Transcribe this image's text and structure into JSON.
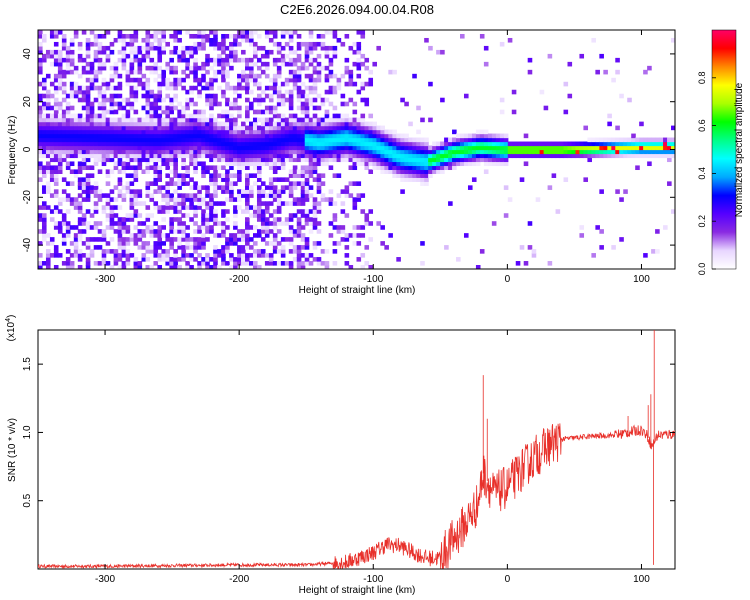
{
  "title": "C2E6.2026.094.00.04.R08",
  "chart_data": [
    {
      "type": "heatmap",
      "name": "spectrogram",
      "xlabel": "Height of straight line (km)",
      "ylabel": "Frequency (Hz)",
      "xlim": [
        -350,
        125
      ],
      "ylim": [
        -50,
        50
      ],
      "xticks": [
        -300,
        -200,
        -100,
        0,
        100
      ],
      "yticks": [
        -40,
        -20,
        0,
        20,
        40
      ],
      "ridge_center": [
        [
          -350,
          6
        ],
        [
          -300,
          5
        ],
        [
          -260,
          4
        ],
        [
          -230,
          6
        ],
        [
          -200,
          1
        ],
        [
          -180,
          2
        ],
        [
          -160,
          5
        ],
        [
          -140,
          3
        ],
        [
          -120,
          5
        ],
        [
          -100,
          2
        ],
        [
          -80,
          -3
        ],
        [
          -60,
          -5
        ],
        [
          -50,
          -3
        ],
        [
          -40,
          -1
        ],
        [
          -30,
          0
        ],
        [
          -20,
          1
        ],
        [
          0,
          0
        ],
        [
          40,
          0
        ],
        [
          100,
          1
        ],
        [
          125,
          1
        ]
      ],
      "colorbar": {
        "label": "Normalized spectral amplitude",
        "range": [
          0,
          1
        ],
        "ticks": [
          "0.0",
          "0.2",
          "0.4",
          "0.6",
          "0.8"
        ],
        "colormap": [
          "#ffffff",
          "#e8d6ff",
          "#8a2be2",
          "#5500ff",
          "#0000ff",
          "#00aaff",
          "#00ffff",
          "#00ff88",
          "#00ff00",
          "#aaff00",
          "#ffff00",
          "#ff8800",
          "#ff0000",
          "#ff0066"
        ]
      }
    },
    {
      "type": "line",
      "name": "snr",
      "xlabel": "Height of straight line (km)",
      "ylabel": "SNR (10 * v/v)",
      "y_multiplier": "(x10",
      "y_multiplier_exp": "4",
      "y_multiplier_close": ")",
      "xlim": [
        -350,
        125
      ],
      "ylim": [
        0,
        1.75
      ],
      "xticks": [
        -300,
        -200,
        -100,
        0,
        100
      ],
      "yticks": [
        "0.5",
        "1.0",
        "1.5"
      ],
      "color": "#e8302a",
      "series": [
        {
          "name": "SNR",
          "points": [
            [
              -350,
              0.02
            ],
            [
              -300,
              0.02
            ],
            [
              -250,
              0.025
            ],
            [
              -200,
              0.03
            ],
            [
              -150,
              0.03
            ],
            [
              -120,
              0.05
            ],
            [
              -100,
              0.12
            ],
            [
              -90,
              0.18
            ],
            [
              -80,
              0.17
            ],
            [
              -70,
              0.12
            ],
            [
              -60,
              0.08
            ],
            [
              -50,
              0.08
            ],
            [
              -40,
              0.22
            ],
            [
              -30,
              0.35
            ],
            [
              -22,
              0.48
            ],
            [
              -18,
              0.7
            ],
            [
              -10,
              0.55
            ],
            [
              0,
              0.6
            ],
            [
              10,
              0.72
            ],
            [
              20,
              0.82
            ],
            [
              30,
              0.9
            ],
            [
              40,
              0.95
            ],
            [
              60,
              0.97
            ],
            [
              80,
              0.98
            ],
            [
              90,
              1.0
            ],
            [
              100,
              1.02
            ],
            [
              104,
              0.98
            ],
            [
              108,
              0.9
            ],
            [
              112,
              0.98
            ],
            [
              125,
              0.99
            ]
          ],
          "spikes": [
            [
              -18,
              1.42
            ],
            [
              -15,
              1.1
            ],
            [
              90,
              1.12
            ],
            [
              105,
              1.2
            ],
            [
              107,
              1.28
            ],
            [
              109,
              0.03
            ],
            [
              109.5,
              1.75
            ]
          ]
        }
      ]
    }
  ]
}
